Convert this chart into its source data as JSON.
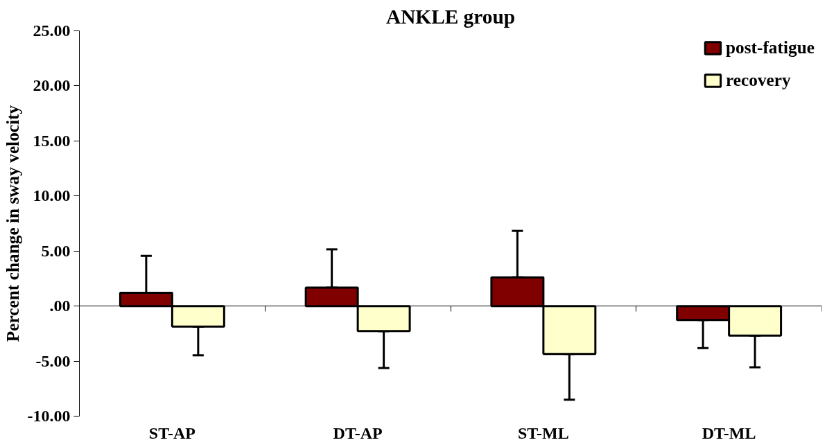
{
  "chart_data": {
    "type": "bar",
    "title": "ANKLE group",
    "ylabel": "Percent change in sway velocity",
    "categories": [
      "ST-AP",
      "DT-AP",
      "ST-ML",
      "DT-ML"
    ],
    "series": [
      {
        "name": "post-fatigue",
        "color": "#800000",
        "values": [
          1.2,
          1.67,
          2.61,
          -1.27
        ],
        "errors": [
          [
            1.2,
            4.55
          ],
          [
            1.67,
            5.15
          ],
          [
            2.61,
            6.83
          ],
          [
            -3.82,
            -1.27
          ]
        ]
      },
      {
        "name": "recovery",
        "color": "#ffffcc",
        "values": [
          -1.87,
          -2.28,
          -4.35,
          -2.68
        ],
        "errors": [
          [
            -4.48,
            -1.87
          ],
          [
            -5.62,
            -2.28
          ],
          [
            -8.5,
            -4.35
          ],
          [
            -5.56,
            -2.68
          ]
        ]
      }
    ],
    "ylim": [
      -10,
      25
    ],
    "yticks": [
      {
        "value": -10,
        "label": "-10.00"
      },
      {
        "value": -5,
        "label": "-5.00"
      },
      {
        "value": 0,
        "label": ".00"
      },
      {
        "value": 5,
        "label": "5.00"
      },
      {
        "value": 10,
        "label": "10.00"
      },
      {
        "value": 15,
        "label": "15.00"
      },
      {
        "value": 20,
        "label": "20.00"
      },
      {
        "value": 25,
        "label": "25.00"
      }
    ],
    "legend": "top right"
  }
}
